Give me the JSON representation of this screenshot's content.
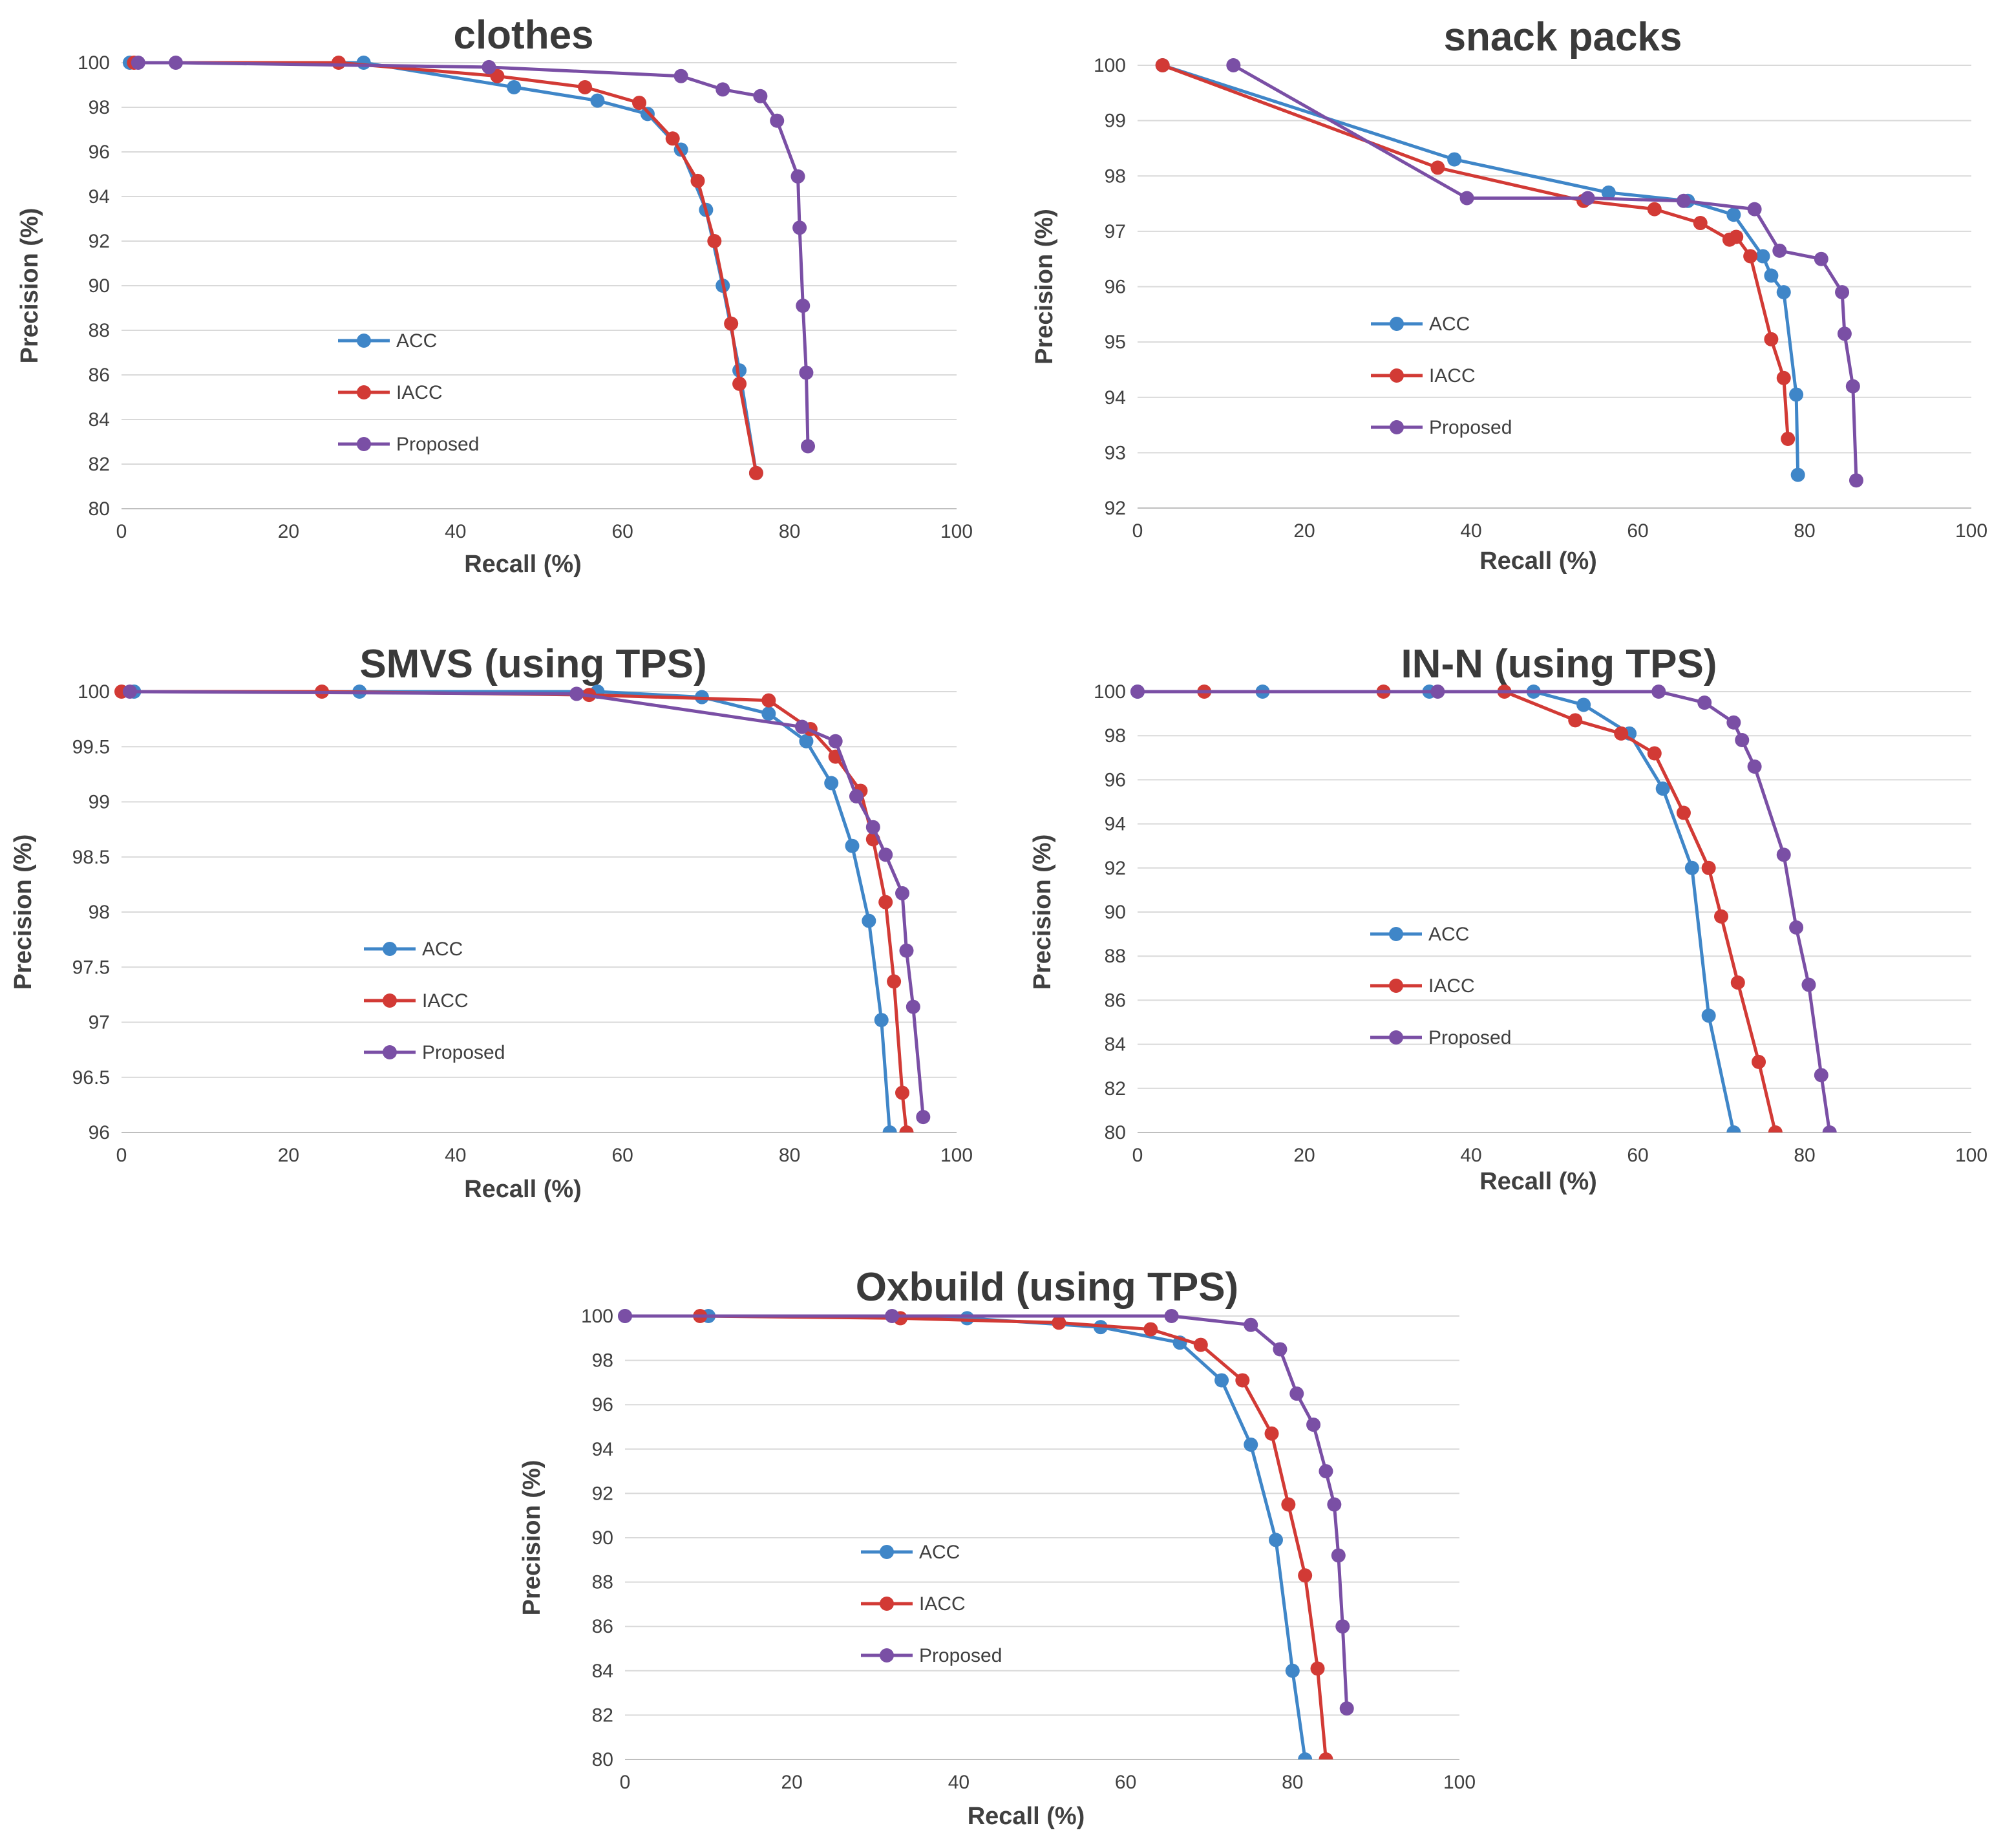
{
  "colors": {
    "ACC": "#3f86c8",
    "IACC": "#d23a35",
    "Proposed": "#7a4fa5"
  },
  "chart_data": [
    {
      "type": "line",
      "title": "clothes",
      "xlabel": "Recall (%)",
      "ylabel": "Precision (%)",
      "xlim": [
        0,
        100
      ],
      "ylim": [
        80,
        100
      ],
      "xticks": [
        0,
        20,
        40,
        60,
        80,
        100
      ],
      "yticks": [
        80,
        82,
        84,
        86,
        88,
        90,
        92,
        94,
        96,
        98,
        100
      ],
      "ytick_labels": [
        "80",
        "82",
        "84",
        "86",
        "88",
        "90",
        "92",
        "94",
        "96",
        "98",
        "100"
      ],
      "legend": [
        "ACC",
        "IACC",
        "Proposed"
      ],
      "series": [
        {
          "name": "ACC",
          "x": [
            1,
            29,
            47,
            57,
            63,
            67,
            70,
            72,
            74,
            76
          ],
          "y": [
            100,
            100,
            98.9,
            98.3,
            97.7,
            96.1,
            93.4,
            90,
            86.2,
            81.6
          ]
        },
        {
          "name": "IACC",
          "x": [
            1.5,
            26,
            45,
            55.5,
            62,
            66,
            69,
            71,
            73,
            74,
            76
          ],
          "y": [
            100,
            100,
            99.4,
            98.9,
            98.2,
            96.6,
            94.7,
            92,
            88.3,
            85.6,
            81.6
          ]
        },
        {
          "name": "Proposed",
          "x": [
            2,
            6.5,
            44,
            67,
            72,
            76.5,
            78.5,
            81,
            81.2,
            81.6,
            82,
            82.2
          ],
          "y": [
            100,
            100,
            99.8,
            99.4,
            98.8,
            98.5,
            97.4,
            94.9,
            92.6,
            89.1,
            86.1,
            82.8
          ]
        }
      ]
    },
    {
      "type": "line",
      "title": "snack packs",
      "xlabel": "Recall (%)",
      "ylabel": "Precision (%)",
      "xlim": [
        0,
        100
      ],
      "ylim": [
        92,
        100
      ],
      "xticks": [
        0,
        20,
        40,
        60,
        80,
        100
      ],
      "yticks": [
        92,
        93,
        94,
        95,
        96,
        97,
        98,
        99,
        100
      ],
      "ytick_labels": [
        "92",
        "93",
        "94",
        "95",
        "96",
        "97",
        "98",
        "99",
        "100"
      ],
      "legend": [
        "ACC",
        "IACC",
        "Proposed"
      ],
      "series": [
        {
          "name": "ACC",
          "x": [
            3,
            38,
            56.5,
            66,
            71.5,
            75,
            76,
            77.5,
            79,
            79.2
          ],
          "y": [
            100,
            98.3,
            97.7,
            97.55,
            97.3,
            96.55,
            96.2,
            95.9,
            94.05,
            92.6
          ]
        },
        {
          "name": "IACC",
          "x": [
            3,
            36,
            53.5,
            62,
            67.5,
            71,
            71.8,
            73.5,
            76,
            77.5,
            78
          ],
          "y": [
            100,
            98.15,
            97.55,
            97.4,
            97.15,
            96.85,
            96.9,
            96.55,
            95.05,
            94.35,
            93.25
          ]
        },
        {
          "name": "Proposed",
          "x": [
            11.5,
            39.5,
            54,
            65.5,
            74,
            77,
            82,
            84.5,
            84.8,
            85.8,
            86.2
          ],
          "y": [
            100,
            97.6,
            97.6,
            97.55,
            97.4,
            96.65,
            96.5,
            95.9,
            95.15,
            94.2,
            92.5
          ]
        }
      ]
    },
    {
      "type": "line",
      "title": "SMVS (using TPS)",
      "xlabel": "Recall (%)",
      "ylabel": "Precision (%)",
      "xlim": [
        0,
        100
      ],
      "ylim": [
        96,
        100
      ],
      "xticks": [
        0,
        20,
        40,
        60,
        80,
        100
      ],
      "yticks": [
        96,
        96.5,
        97,
        97.5,
        98,
        98.5,
        99,
        99.5,
        100
      ],
      "ytick_labels": [
        "96",
        "96.5",
        "97",
        "97.5",
        "98",
        "98.5",
        "99",
        "99.5",
        "100"
      ],
      "legend": [
        "ACC",
        "IACC",
        "Proposed"
      ],
      "series": [
        {
          "name": "ACC",
          "x": [
            1.5,
            28.5,
            57,
            69.5,
            77.5,
            82,
            85,
            87.5,
            89.5,
            91,
            92
          ],
          "y": [
            100,
            100,
            100,
            99.95,
            99.8,
            99.55,
            99.17,
            98.6,
            97.92,
            97.02,
            96
          ]
        },
        {
          "name": "IACC",
          "x": [
            0,
            24,
            56,
            77.5,
            82.5,
            85.5,
            88.5,
            90,
            91.5,
            92.5,
            93.5,
            94
          ],
          "y": [
            100,
            100,
            99.97,
            99.92,
            99.66,
            99.41,
            99.1,
            98.66,
            98.09,
            97.37,
            96.36,
            96
          ]
        },
        {
          "name": "Proposed",
          "x": [
            1,
            54.5,
            81.5,
            85.5,
            88,
            90,
            91.5,
            93.5,
            94,
            94.8,
            96
          ],
          "y": [
            100,
            99.98,
            99.68,
            99.55,
            99.05,
            98.77,
            98.52,
            98.17,
            97.65,
            97.14,
            96.14
          ]
        }
      ]
    },
    {
      "type": "line",
      "title": "IN-N (using TPS)",
      "xlabel": "Recall (%)",
      "ylabel": "Precision (%)",
      "xlim": [
        0,
        100
      ],
      "ylim": [
        80,
        100
      ],
      "xticks": [
        0,
        20,
        40,
        60,
        80,
        100
      ],
      "yticks": [
        80,
        82,
        84,
        86,
        88,
        90,
        92,
        94,
        96,
        98,
        100
      ],
      "ytick_labels": [
        "80",
        "82",
        "84",
        "86",
        "88",
        "90",
        "92",
        "94",
        "96",
        "98",
        "100"
      ],
      "legend": [
        "ACC",
        "IACC",
        "Proposed"
      ],
      "series": [
        {
          "name": "ACC",
          "x": [
            0,
            15,
            35,
            47.5,
            53.5,
            59,
            63,
            66.5,
            68.5,
            71.5
          ],
          "y": [
            100,
            100,
            100,
            100,
            99.4,
            98.1,
            95.6,
            92,
            85.3,
            80
          ]
        },
        {
          "name": "IACC",
          "x": [
            8,
            29.5,
            44,
            52.5,
            58,
            62,
            65.5,
            68.5,
            70,
            72,
            74.5,
            76.5
          ],
          "y": [
            100,
            100,
            100,
            98.7,
            98.1,
            97.2,
            94.5,
            92,
            89.8,
            86.8,
            83.2,
            80
          ]
        },
        {
          "name": "Proposed",
          "x": [
            0,
            36,
            62.5,
            68,
            71.5,
            72.5,
            74,
            77.5,
            79,
            80.5,
            82,
            83
          ],
          "y": [
            100,
            100,
            100,
            99.5,
            98.6,
            97.8,
            96.6,
            92.6,
            89.3,
            86.7,
            82.6,
            80
          ]
        }
      ]
    },
    {
      "type": "line",
      "title": "Oxbuild (using TPS)",
      "xlabel": "Recall (%)",
      "ylabel": "Precision (%)",
      "xlim": [
        0,
        100
      ],
      "ylim": [
        80,
        100
      ],
      "xticks": [
        0,
        20,
        40,
        60,
        80,
        100
      ],
      "yticks": [
        80,
        82,
        84,
        86,
        88,
        90,
        92,
        94,
        96,
        98,
        100
      ],
      "ytick_labels": [
        "80",
        "82",
        "84",
        "86",
        "88",
        "90",
        "92",
        "94",
        "96",
        "98",
        "100"
      ],
      "legend": [
        "ACC",
        "IACC",
        "Proposed"
      ],
      "series": [
        {
          "name": "ACC",
          "x": [
            0,
            10,
            41,
            57,
            66.5,
            71.5,
            75,
            78,
            80,
            81.5
          ],
          "y": [
            100,
            100,
            99.9,
            99.5,
            98.8,
            97.1,
            94.2,
            89.9,
            84,
            80
          ]
        },
        {
          "name": "IACC",
          "x": [
            9,
            33,
            52,
            63,
            69,
            74,
            77.5,
            79.5,
            81.5,
            83,
            84
          ],
          "y": [
            100,
            99.9,
            99.7,
            99.4,
            98.7,
            97.1,
            94.7,
            91.5,
            88.3,
            84.1,
            80
          ]
        },
        {
          "name": "Proposed",
          "x": [
            0,
            32,
            65.5,
            75,
            78.5,
            80.5,
            82.5,
            84,
            85,
            85.5,
            86,
            86.5
          ],
          "y": [
            100,
            100,
            100,
            99.6,
            98.5,
            96.5,
            95.1,
            93,
            91.5,
            89.2,
            86,
            82.3
          ]
        }
      ]
    }
  ]
}
